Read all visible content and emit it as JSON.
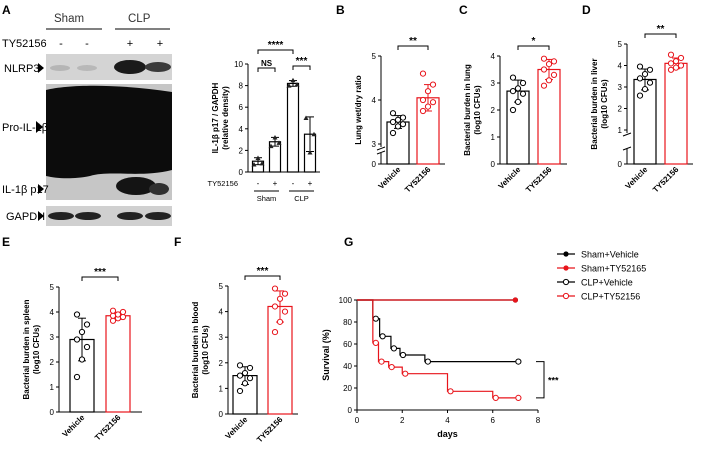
{
  "panels": {
    "A": "A",
    "B": "B",
    "C": "C",
    "D": "D",
    "E": "E",
    "F": "F",
    "G": "G"
  },
  "blot": {
    "groups": [
      "Sham",
      "CLP"
    ],
    "treatment_label": "TY52156",
    "treatment_signs": [
      "-",
      "-",
      "+",
      "+"
    ],
    "bands": [
      "NLRP3",
      "Pro-IL-1β",
      "IL-1β p17",
      "GAPDH"
    ]
  },
  "colors": {
    "vehicle": "#000000",
    "ty": "#e8141b",
    "band": "#111111"
  },
  "chart_data": [
    {
      "id": "A-quant",
      "type": "bar",
      "ylabel": "IL-1β p17 / GAPDH (relative density)",
      "ylim": [
        0,
        10
      ],
      "yticks": [
        0,
        2,
        4,
        6,
        8,
        10
      ],
      "bar_style": "mean ± SD with individual points",
      "treatment_label": "TY52156",
      "treatment_signs": [
        "-",
        "+",
        "-",
        "+"
      ],
      "group_labels": [
        "Sham",
        "CLP"
      ],
      "categories": [
        "Sham -",
        "Sham +",
        "CLP -",
        "CLP +"
      ],
      "values": [
        1.0,
        2.8,
        8.2,
        3.5
      ],
      "points": [
        [
          0.7,
          1.3,
          0.8
        ],
        [
          2.4,
          3.2,
          2.7
        ],
        [
          8.0,
          8.5,
          8.1
        ],
        [
          5.0,
          1.8,
          3.5
        ]
      ],
      "significance": [
        {
          "a": 0,
          "b": 2,
          "label": "****"
        },
        {
          "a": 0,
          "b": 1,
          "label": "NS"
        },
        {
          "a": 2,
          "b": 3,
          "label": "***"
        }
      ]
    },
    {
      "id": "B",
      "type": "bar",
      "ylabel": "Lung wet/dry ratio",
      "ylim": [
        3,
        5
      ],
      "yticks": [
        3,
        4,
        5
      ],
      "broken_axis": true,
      "categories": [
        "Vehicle",
        "TY52156"
      ],
      "values": [
        3.5,
        4.05
      ],
      "points": [
        [
          3.25,
          3.4,
          3.45,
          3.5,
          3.55,
          3.6,
          3.7
        ],
        [
          3.75,
          3.85,
          3.95,
          4.0,
          4.2,
          4.35,
          4.6
        ]
      ],
      "significance": [
        {
          "a": 0,
          "b": 1,
          "label": "**"
        }
      ]
    },
    {
      "id": "C",
      "type": "bar",
      "ylabel": "Bacterial burden in lung (log10 CFUs)",
      "ylim": [
        0,
        4
      ],
      "yticks": [
        0,
        1,
        2,
        3,
        4
      ],
      "categories": [
        "Vehicle",
        "TY52156"
      ],
      "values": [
        2.7,
        3.5
      ],
      "points": [
        [
          2.0,
          2.3,
          2.6,
          2.7,
          2.8,
          3.0,
          3.2
        ],
        [
          2.9,
          3.1,
          3.3,
          3.5,
          3.7,
          3.8,
          3.9
        ]
      ],
      "significance": [
        {
          "a": 0,
          "b": 1,
          "label": "*"
        }
      ]
    },
    {
      "id": "D",
      "type": "bar",
      "ylabel": "Bacterial burden in liver (log10 CFUs)",
      "ylim": [
        1,
        5
      ],
      "yticks": [
        1,
        2,
        3,
        4,
        5
      ],
      "broken_axis": true,
      "categories": [
        "Vehicle",
        "TY52156"
      ],
      "values": [
        3.35,
        4.1
      ],
      "points": [
        [
          2.6,
          2.9,
          3.2,
          3.4,
          3.6,
          3.8,
          3.95
        ],
        [
          3.8,
          3.9,
          4.0,
          4.1,
          4.2,
          4.35,
          4.5
        ]
      ],
      "significance": [
        {
          "a": 0,
          "b": 1,
          "label": "**"
        }
      ]
    },
    {
      "id": "E",
      "type": "bar",
      "ylabel": "Bacterial burden in spleen (log10 CFUs)",
      "ylim": [
        0,
        5
      ],
      "yticks": [
        0,
        1,
        2,
        3,
        4,
        5
      ],
      "categories": [
        "Vehicle",
        "TY52156"
      ],
      "values": [
        2.9,
        3.85
      ],
      "points": [
        [
          1.4,
          2.1,
          2.6,
          2.9,
          3.2,
          3.5,
          3.9
        ],
        [
          3.65,
          3.75,
          3.8,
          3.85,
          3.9,
          4.0,
          4.05
        ]
      ],
      "significance": [
        {
          "a": 0,
          "b": 1,
          "label": "***"
        }
      ]
    },
    {
      "id": "F",
      "type": "bar",
      "ylabel": "Bacterial burden in blood (log10 CFUs)",
      "ylim": [
        0,
        5
      ],
      "yticks": [
        0,
        1,
        2,
        3,
        4,
        5
      ],
      "categories": [
        "Vehicle",
        "TY52156"
      ],
      "values": [
        1.5,
        4.2
      ],
      "points": [
        [
          0.9,
          1.2,
          1.4,
          1.5,
          1.6,
          1.8,
          1.9
        ],
        [
          3.2,
          3.6,
          4.0,
          4.2,
          4.5,
          4.7,
          4.9
        ]
      ],
      "significance": [
        {
          "a": 0,
          "b": 1,
          "label": "***"
        }
      ]
    },
    {
      "id": "G",
      "type": "line",
      "step": true,
      "xlabel": "days",
      "ylabel": "Survival (%)",
      "xlim": [
        0,
        8
      ],
      "ylim": [
        0,
        100
      ],
      "xticks": [
        0,
        2,
        4,
        6,
        8
      ],
      "yticks": [
        0,
        20,
        40,
        60,
        80,
        100
      ],
      "legend_position": "top-right",
      "significance_label": "***",
      "series": [
        {
          "name": "Sham+Vehicle",
          "color": "#000000",
          "marker": "filled",
          "x": [
            0,
            7
          ],
          "y": [
            100,
            100
          ]
        },
        {
          "name": "Sham+TY52165",
          "color": "#e8141b",
          "marker": "filled",
          "x": [
            0,
            7
          ],
          "y": [
            100,
            100
          ]
        },
        {
          "name": "CLP+Vehicle",
          "color": "#000000",
          "marker": "open",
          "x": [
            0,
            0.7,
            1.0,
            1.5,
            1.9,
            3.0,
            7.0
          ],
          "y": [
            100,
            83,
            67,
            56,
            50,
            44,
            44
          ]
        },
        {
          "name": "CLP+TY52156",
          "color": "#e8141b",
          "marker": "open",
          "x": [
            0,
            0.7,
            0.95,
            1.4,
            2.0,
            4.0,
            6.0,
            7.0
          ],
          "y": [
            100,
            61,
            44,
            39,
            33,
            17,
            11,
            11
          ]
        }
      ]
    }
  ]
}
